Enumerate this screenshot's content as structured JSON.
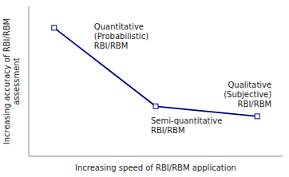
{
  "chart_data": {
    "type": "line",
    "x": [
      1,
      5,
      9
    ],
    "values": [
      9,
      3.5,
      2.8
    ],
    "color": "#00008B",
    "marker": "square",
    "xlabel": "Increasing speed of RBI/RBM application",
    "ylabel": "Increasing accuracy of RBI/RBM\nassessment",
    "annotations": [
      "Quantitative\n(Probabilistic)\nRBI/RBM",
      "Semi-quantitative\nRBI/RBM",
      "Qualitative\n(Subjective)\nRBI/RBM"
    ],
    "xlim": [
      0,
      10
    ],
    "ylim": [
      0,
      10.5
    ],
    "tick_labels": false
  }
}
